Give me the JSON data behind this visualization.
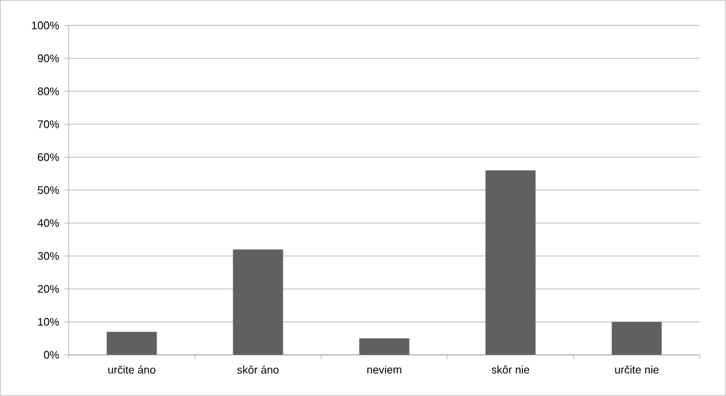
{
  "chart_data": {
    "type": "bar",
    "categories": [
      "určite áno",
      "skôr áno",
      "neviem",
      "skôr nie",
      "určite nie"
    ],
    "values": [
      7,
      32,
      5,
      56,
      10
    ],
    "color": "#606060",
    "ylim": [
      0,
      100
    ],
    "yticks": [
      {
        "value": 0,
        "label": "0%"
      },
      {
        "value": 10,
        "label": "10%"
      },
      {
        "value": 20,
        "label": "20%"
      },
      {
        "value": 30,
        "label": "30%"
      },
      {
        "value": 40,
        "label": "40%"
      },
      {
        "value": 50,
        "label": "50%"
      },
      {
        "value": 60,
        "label": "60%"
      },
      {
        "value": 70,
        "label": "70%"
      },
      {
        "value": 80,
        "label": "80%"
      },
      {
        "value": 90,
        "label": "90%"
      },
      {
        "value": 100,
        "label": "100%"
      }
    ],
    "grid": "y"
  }
}
